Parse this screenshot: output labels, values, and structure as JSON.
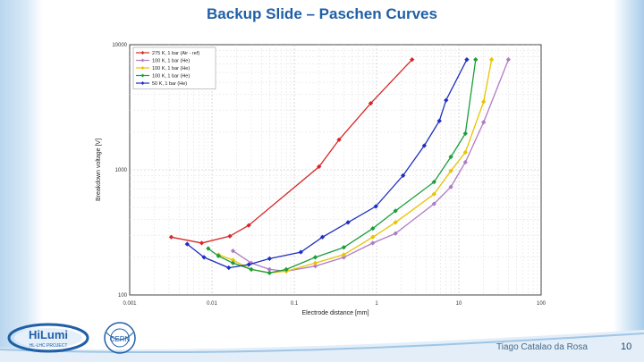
{
  "slide": {
    "title": "Backup Slide – Paschen Curves",
    "author": "Tiago Catalao da Rosa",
    "page_number": "10",
    "logo_text": "HiLumi",
    "logo_subtext": "HL-LHC PROJECT",
    "cern_text": "CERN"
  },
  "colors": {
    "title": "#1f5fa8",
    "background_accent": "#b9d6ee"
  },
  "chart_data": {
    "type": "line",
    "xlabel": "Electrode distance [mm]",
    "ylabel": "Breakdown voltage [V]",
    "x_scale": "log",
    "y_scale": "log",
    "xlim": [
      0.001,
      100
    ],
    "ylim": [
      100,
      10000
    ],
    "x_ticks": [
      "0.001",
      "0.01",
      "0.1",
      "1",
      "10",
      "100"
    ],
    "y_ticks": [
      "100",
      "1000",
      "10000"
    ],
    "grid": true,
    "legend_position": "top-left",
    "series": [
      {
        "name": "275 K, 1 bar (Air - ref)",
        "color": "#d62728",
        "marker": "diamond",
        "x": [
          0.0032,
          0.0075,
          0.0165,
          0.028,
          0.2,
          0.35,
          0.85,
          2.7
        ],
        "y": [
          290,
          260,
          295,
          360,
          1060,
          1740,
          3400,
          7600
        ]
      },
      {
        "name": "100 K, 1 bar (He)",
        "color": "#b07ac6",
        "marker": "diamond",
        "x": [
          0.018,
          0.03,
          0.05,
          0.08,
          0.18,
          0.4,
          0.9,
          1.7,
          5.0,
          8.0,
          12.0,
          20.0,
          40.0
        ],
        "y": [
          225,
          180,
          160,
          155,
          170,
          200,
          260,
          310,
          535,
          730,
          1150,
          2400,
          7600
        ]
      },
      {
        "name": "100 K, 1 bar (He)",
        "color": "#e8c400",
        "marker": "diamond",
        "x": [
          0.012,
          0.018,
          0.03,
          0.05,
          0.08,
          0.18,
          0.4,
          0.9,
          1.7,
          5.0,
          8.0,
          12.0,
          20.0,
          25.0
        ],
        "y": [
          210,
          190,
          160,
          150,
          155,
          180,
          210,
          290,
          380,
          640,
          980,
          1380,
          3500,
          7600
        ]
      },
      {
        "name": "100 K, 1 bar (He)",
        "color": "#1a9e3a",
        "marker": "diamond",
        "x": [
          0.009,
          0.012,
          0.018,
          0.03,
          0.05,
          0.08,
          0.18,
          0.4,
          0.9,
          1.7,
          5.0,
          8.0,
          12.0,
          16.0
        ],
        "y": [
          235,
          205,
          180,
          160,
          150,
          160,
          200,
          240,
          340,
          470,
          800,
          1270,
          1950,
          7600
        ]
      },
      {
        "name": "50 K, 1 bar (He)",
        "color": "#1f2fbf",
        "marker": "diamond",
        "x": [
          0.005,
          0.008,
          0.016,
          0.028,
          0.05,
          0.12,
          0.22,
          0.45,
          0.98,
          2.1,
          3.8,
          5.8,
          7.0,
          12.5
        ],
        "y": [
          255,
          200,
          165,
          175,
          195,
          220,
          290,
          380,
          510,
          900,
          1560,
          2460,
          3600,
          7600
        ]
      }
    ]
  }
}
